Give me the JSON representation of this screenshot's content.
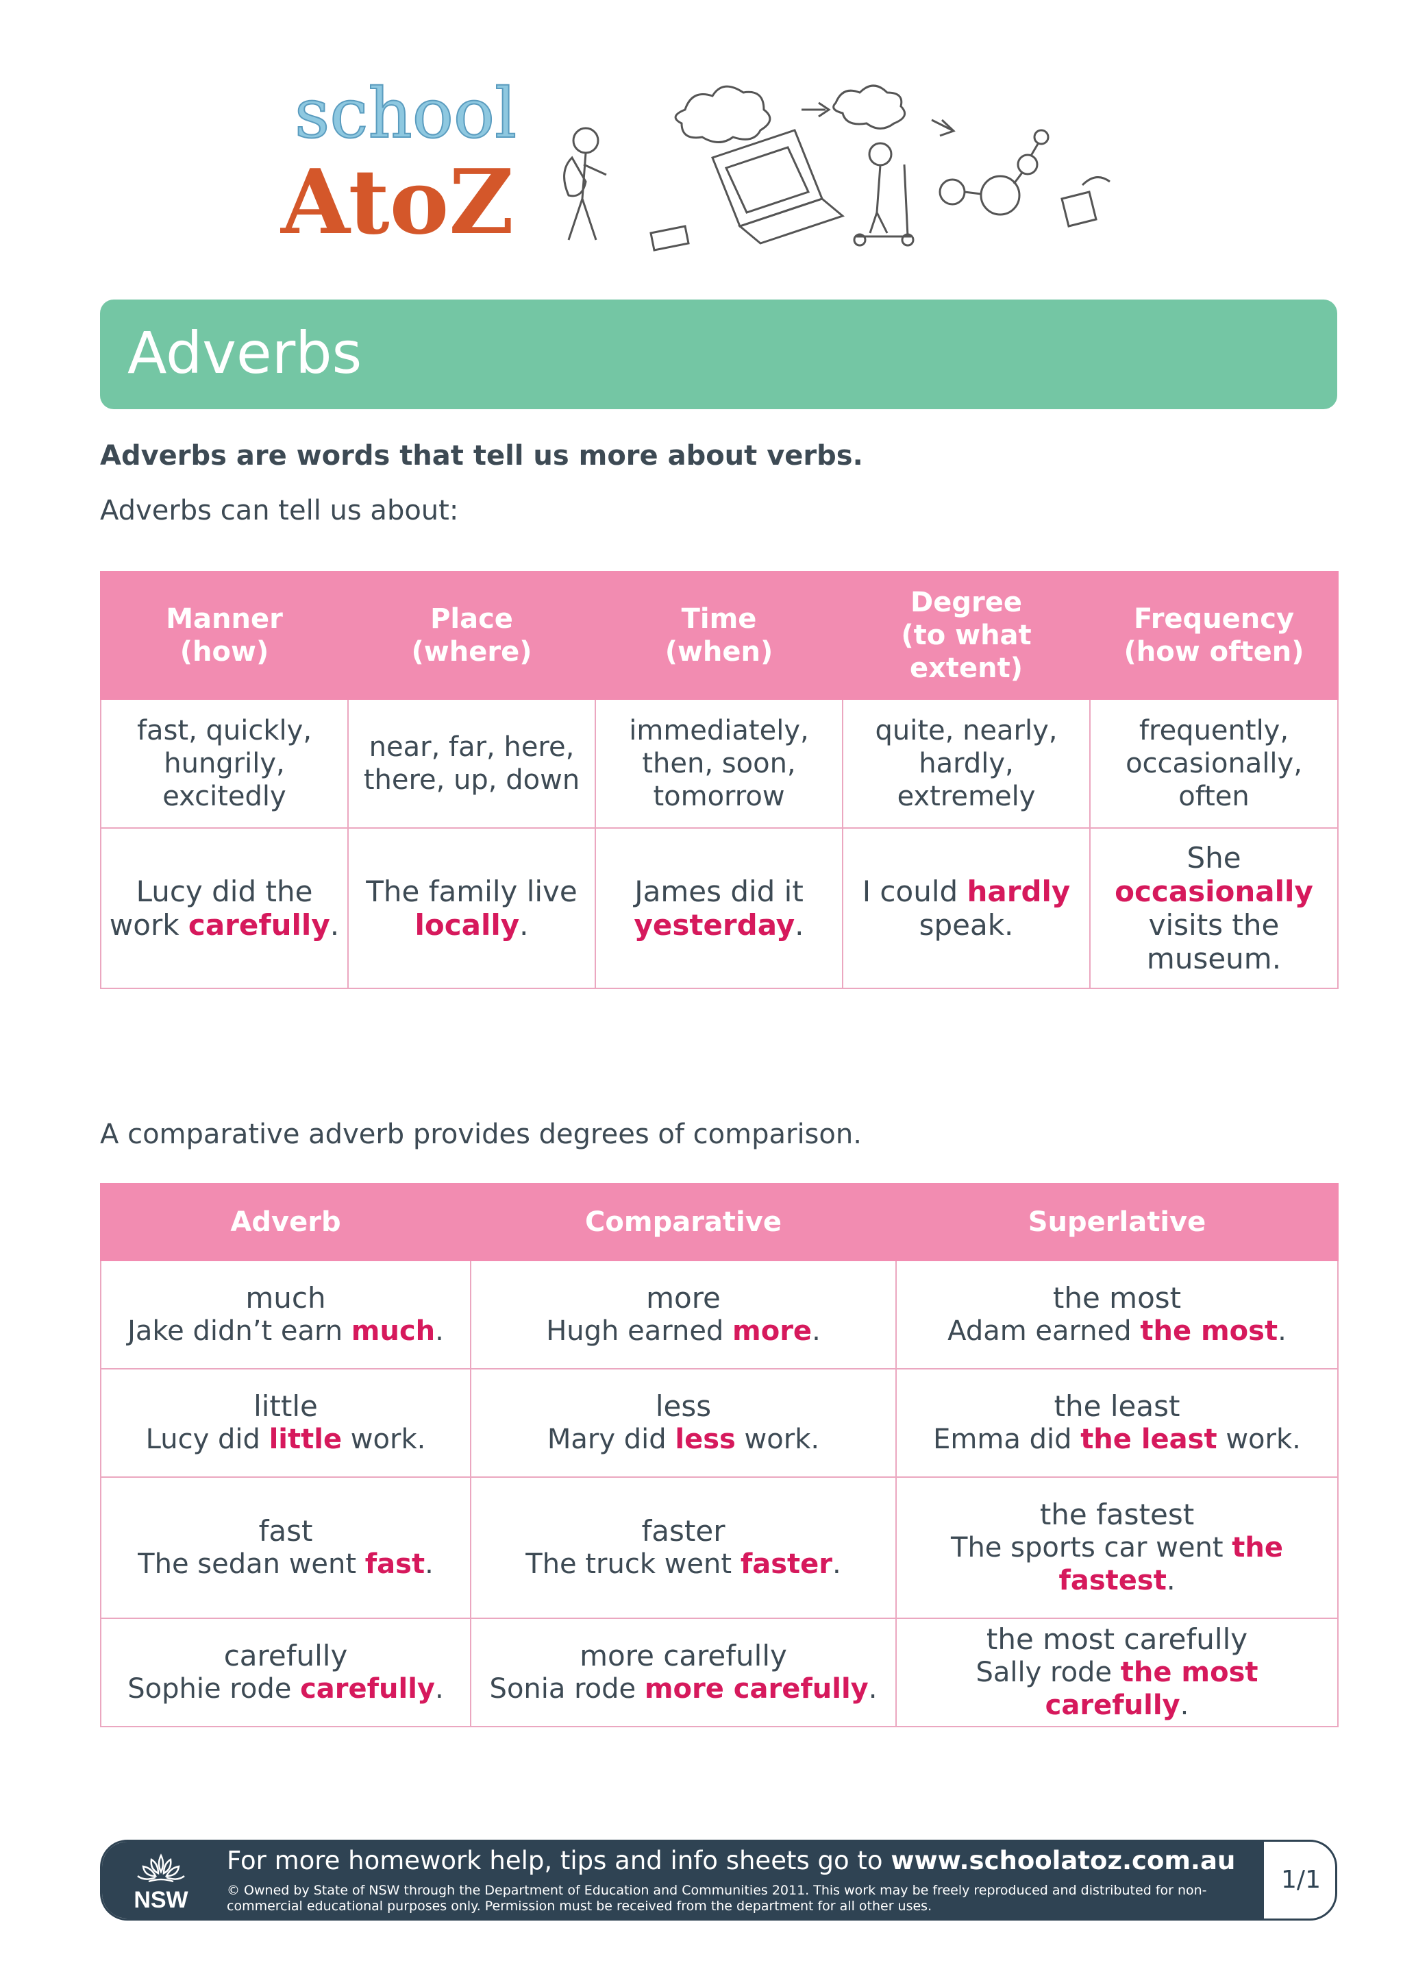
{
  "logo": {
    "word_top": "school",
    "word_bottom": "AtoZ"
  },
  "banner": {
    "title": "Adverbs"
  },
  "intro": {
    "bold": "Adverbs are words that tell us more about verbs.",
    "text": "Adverbs can tell us about:"
  },
  "types_table": {
    "headers": [
      "Manner\n(how)",
      "Place\n(where)",
      "Time\n(when)",
      "Degree\n(to what\nextent)",
      "Frequency\n(how often)"
    ],
    "words": [
      "fast, quickly,\nhungrily, excitedly",
      "near, far, here,\nthere, up, down",
      "immediately,\nthen, soon,\ntomorrow",
      "quite, nearly,\nhardly, extremely",
      "frequently,\noccasionally,\noften"
    ],
    "examples": [
      {
        "before": "Lucy did the work ",
        "highlight": "carefully",
        "after": "."
      },
      {
        "before": "The family live ",
        "highlight": "locally",
        "after": "."
      },
      {
        "before": "James did it ",
        "highlight": "yesterday",
        "after": "."
      },
      {
        "before": "I could ",
        "highlight": "hardly",
        "after": " speak."
      },
      {
        "before": "She ",
        "highlight": "occasionally",
        "after": " visits the museum."
      }
    ]
  },
  "comparative_intro": "A comparative adverb provides degrees of comparison.",
  "comparative_table": {
    "headers": [
      "Adverb",
      "Comparative",
      "Superlative"
    ],
    "rows": [
      [
        {
          "word": "much",
          "before": "Jake didn’t earn ",
          "highlight": "much",
          "after": "."
        },
        {
          "word": "more",
          "before": "Hugh earned ",
          "highlight": "more",
          "after": "."
        },
        {
          "word": "the most",
          "before": "Adam earned ",
          "highlight": "the most",
          "after": "."
        }
      ],
      [
        {
          "word": "little",
          "before": "Lucy did ",
          "highlight": "little",
          "after": " work."
        },
        {
          "word": "less",
          "before": "Mary did ",
          "highlight": "less",
          "after": " work."
        },
        {
          "word": "the least",
          "before": "Emma did ",
          "highlight": "the least",
          "after": " work."
        }
      ],
      [
        {
          "word": "fast",
          "before": "The sedan went ",
          "highlight": "fast",
          "after": "."
        },
        {
          "word": "faster",
          "before": "The truck went ",
          "highlight": "faster",
          "after": "."
        },
        {
          "word": "the fastest",
          "before": "The sports car went ",
          "highlight": "the fastest",
          "after": "."
        }
      ],
      [
        {
          "word": "carefully",
          "before": "Sophie rode ",
          "highlight": "carefully",
          "after": "."
        },
        {
          "word": "more carefully",
          "before": "Sonia rode ",
          "highlight": "more carefully",
          "after": "."
        },
        {
          "word": "the most carefully",
          "before": "Sally rode ",
          "highlight": "the most carefully",
          "after": "."
        }
      ]
    ]
  },
  "footer": {
    "logo_text": "NSW",
    "line_prefix": "For more homework help, tips and info sheets go to ",
    "url": "www.schoolatoz.com.au",
    "copyright": "© Owned by State of NSW through the Department of Education and Communities 2011. This work may be freely reproduced and distributed for non-commercial educational purposes only. Permission must be received from the department for all other uses.",
    "page": "1/1"
  },
  "colors": {
    "banner": "#74c6a4",
    "table_header": "#f28cb1",
    "highlight": "#d6195c",
    "text": "#3d4a54",
    "footer": "#2f4353"
  }
}
